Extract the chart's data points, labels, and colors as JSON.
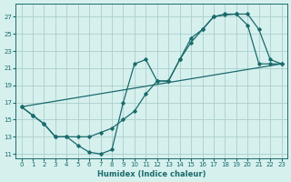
{
  "xlabel": "Humidex (Indice chaleur)",
  "bg_color": "#d6f0ee",
  "grid_color": "#aacfcc",
  "line_color": "#1a6b6b",
  "xlim": [
    -0.5,
    23.5
  ],
  "ylim": [
    10.5,
    28.5
  ],
  "xticks": [
    0,
    1,
    2,
    3,
    4,
    5,
    6,
    7,
    8,
    9,
    10,
    11,
    12,
    13,
    14,
    15,
    16,
    17,
    18,
    19,
    20,
    21,
    22,
    23
  ],
  "yticks": [
    11,
    13,
    15,
    17,
    19,
    21,
    23,
    25,
    27
  ],
  "line1_x": [
    0,
    1,
    2,
    3,
    4,
    5,
    6,
    7,
    8,
    9,
    10,
    11,
    12,
    13,
    14,
    15,
    16,
    17,
    18,
    19,
    20,
    21,
    22,
    23
  ],
  "line1_y": [
    16.5,
    15.5,
    14.5,
    13.0,
    13.0,
    13.0,
    13.0,
    13.5,
    14.0,
    15.0,
    16.0,
    18.0,
    19.5,
    19.5,
    22.0,
    24.0,
    25.5,
    27.0,
    27.3,
    27.3,
    27.3,
    25.5,
    22.0,
    21.5
  ],
  "line2_x": [
    0,
    1,
    2,
    3,
    4,
    5,
    6,
    7,
    8,
    9,
    10,
    11,
    12,
    13,
    14,
    15,
    16,
    17,
    18,
    19,
    20,
    21,
    22,
    23
  ],
  "line2_y": [
    16.5,
    15.5,
    14.5,
    13.0,
    13.0,
    12.0,
    11.2,
    11.0,
    11.5,
    17.0,
    21.5,
    22.0,
    19.5,
    19.5,
    22.0,
    24.5,
    25.5,
    27.0,
    27.2,
    27.3,
    26.0,
    21.5,
    21.5,
    21.5
  ],
  "line3_x": [
    0,
    23
  ],
  "line3_y": [
    16.5,
    21.5
  ]
}
